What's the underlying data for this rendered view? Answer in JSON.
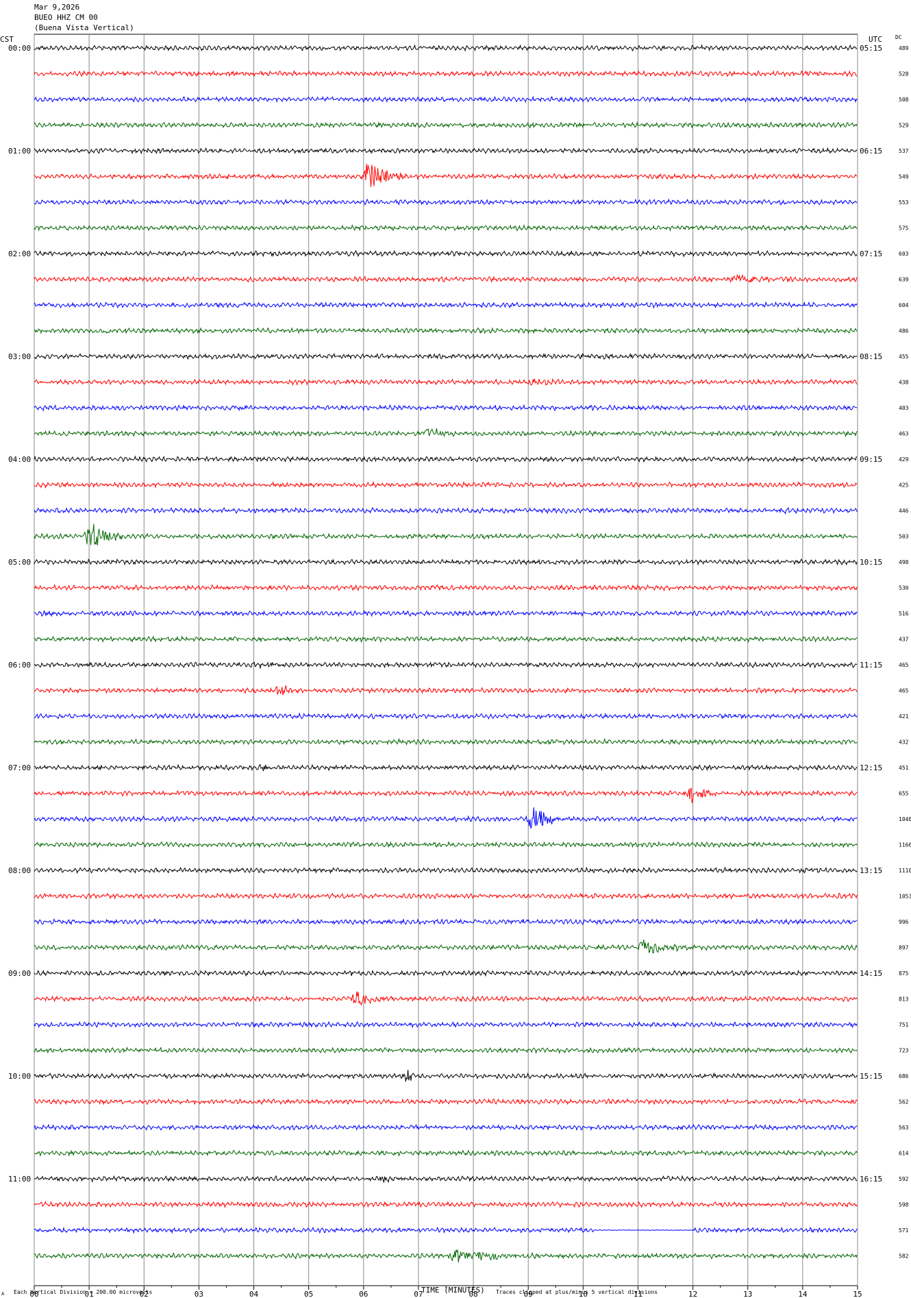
{
  "header": {
    "date": "Mar 9,2026",
    "station": "BUEO HHZ CM 00",
    "location": "(Buena Vista Vertical)"
  },
  "chart_data": {
    "type": "line",
    "title": "",
    "left_axis_label": "CST",
    "right_axis_label": "UTC",
    "dc_label": "DC",
    "xlabel": "TIME (MINUTES)",
    "xlim": [
      0,
      15
    ],
    "x_ticks": [
      "00",
      "01",
      "02",
      "03",
      "04",
      "05",
      "06",
      "07",
      "08",
      "09",
      "10",
      "11",
      "12",
      "13",
      "14",
      "15"
    ],
    "left_hour_labels": [
      "00:00",
      "01:00",
      "02:00",
      "03:00",
      "04:00",
      "05:00",
      "06:00",
      "07:00",
      "08:00",
      "09:00",
      "10:00",
      "11:00"
    ],
    "right_hour_labels": [
      "05:15",
      "06:15",
      "07:15",
      "08:15",
      "09:15",
      "10:15",
      "11:15",
      "12:15",
      "13:15",
      "14:15",
      "15:15",
      "16:15"
    ],
    "trace_colors": [
      "#000000",
      "#ff0000",
      "#0000ff",
      "#006400"
    ],
    "dc_values": [
      "489",
      "528",
      "508",
      "529",
      "537",
      "549",
      "553",
      "575",
      "603",
      "639",
      "604",
      "486",
      "455",
      "438",
      "403",
      "463",
      "429",
      "425",
      "446",
      "503",
      "498",
      "530",
      "516",
      "437",
      "465",
      "465",
      "421",
      "432",
      "451",
      "655",
      "1048",
      "1166",
      "1110",
      "1053",
      "996",
      "897",
      "875",
      "813",
      "751",
      "723",
      "686",
      "562",
      "563",
      "614",
      "592",
      "598",
      "571",
      "582"
    ],
    "events": [
      {
        "row": 5,
        "minute": 6.0,
        "amplitude": 22,
        "duration": 0.9
      },
      {
        "row": 9,
        "minute": 12.7,
        "amplitude": 9,
        "duration": 0.8
      },
      {
        "row": 13,
        "minute": 9.0,
        "amplitude": 6,
        "duration": 0.8
      },
      {
        "row": 14,
        "minute": 3.6,
        "amplitude": 4,
        "duration": 0.4
      },
      {
        "row": 15,
        "minute": 7.1,
        "amplitude": 9,
        "duration": 0.6
      },
      {
        "row": 11,
        "minute": 1.25,
        "amplitude": 5,
        "duration": 0.2
      },
      {
        "row": 18,
        "minute": 13.6,
        "amplitude": 6,
        "duration": 0.2
      },
      {
        "row": 19,
        "minute": 0.95,
        "amplitude": 24,
        "duration": 0.8
      },
      {
        "row": 24,
        "minute": 4.0,
        "amplitude": 4,
        "duration": 0.5
      },
      {
        "row": 25,
        "minute": 4.4,
        "amplitude": 8,
        "duration": 0.6
      },
      {
        "row": 28,
        "minute": 4.1,
        "amplitude": 4,
        "duration": 0.4
      },
      {
        "row": 29,
        "minute": 11.85,
        "amplitude": 14,
        "duration": 0.8
      },
      {
        "row": 30,
        "minute": 9.0,
        "amplitude": 20,
        "duration": 0.7
      },
      {
        "row": 35,
        "minute": 11.0,
        "amplitude": 12,
        "duration": 1.1
      },
      {
        "row": 37,
        "minute": 5.8,
        "amplitude": 14,
        "duration": 0.6
      },
      {
        "row": 40,
        "minute": 6.7,
        "amplitude": 9,
        "duration": 0.4
      },
      {
        "row": 44,
        "minute": 6.3,
        "amplitude": 6,
        "duration": 0.4
      },
      {
        "row": 47,
        "minute": 7.6,
        "amplitude": 13,
        "duration": 1.2
      },
      {
        "row": 47,
        "minute": 8.3,
        "amplitude": 7,
        "duration": 0.8
      }
    ]
  },
  "footer": {
    "corner_mark": "A",
    "scale_note": "Each Vertical Division =  200.00 microvolts",
    "clip_note": "Traces clipped at plus/minus 5 vertical divisions"
  }
}
